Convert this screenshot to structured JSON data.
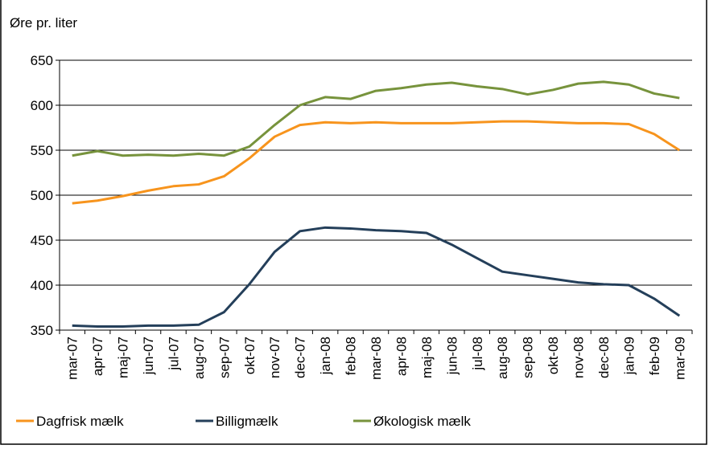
{
  "chart_data": {
    "type": "line",
    "y_label": "Øre pr. liter",
    "categories": [
      "mar-07",
      "apr-07",
      "maj-07",
      "jun-07",
      "jul-07",
      "aug-07",
      "sep-07",
      "okt-07",
      "nov-07",
      "dec-07",
      "jan-08",
      "feb-08",
      "mar-08",
      "apr-08",
      "maj-08",
      "jun-08",
      "jul-08",
      "aug-08",
      "sep-08",
      "okt-08",
      "nov-08",
      "dec-08",
      "jan-09",
      "feb-09",
      "mar-09"
    ],
    "series": [
      {
        "name": "Dagfrisk mælk",
        "color": "#f7941d",
        "values": [
          491,
          494,
          499,
          505,
          510,
          512,
          521,
          541,
          565,
          578,
          581,
          580,
          581,
          580,
          580,
          580,
          581,
          582,
          582,
          581,
          580,
          580,
          579,
          568,
          550
        ]
      },
      {
        "name": "Billigmælk",
        "color": "#243f5a",
        "values": [
          355,
          354,
          354,
          355,
          355,
          356,
          370,
          401,
          437,
          460,
          464,
          463,
          461,
          460,
          458,
          445,
          430,
          415,
          411,
          407,
          403,
          401,
          400,
          385,
          366
        ]
      },
      {
        "name": "Økologisk mælk",
        "color": "#77933c",
        "values": [
          544,
          549,
          544,
          545,
          544,
          546,
          544,
          554,
          578,
          600,
          609,
          607,
          616,
          619,
          623,
          625,
          621,
          618,
          612,
          617,
          624,
          626,
          623,
          613,
          608
        ]
      }
    ],
    "ylim": [
      350,
      650
    ],
    "yticks": [
      350,
      400,
      450,
      500,
      550,
      600,
      650
    ],
    "grid": true
  }
}
